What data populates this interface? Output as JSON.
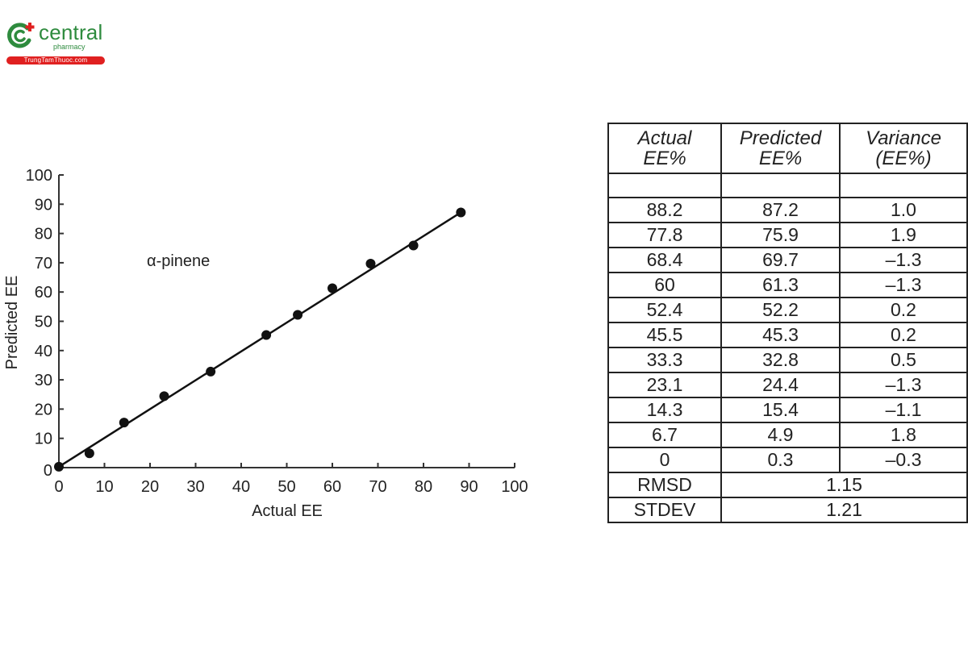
{
  "logo": {
    "brand": "central",
    "sub": "pharmacy",
    "site": "TrungTamThuoc.com",
    "colors": {
      "green": "#2e8b3e",
      "red": "#e02020"
    }
  },
  "chart_data": {
    "type": "scatter",
    "title": "",
    "annotation": "α-pinene",
    "xlabel": "Actual EE",
    "ylabel": "Predicted EE",
    "xlim": [
      0,
      100
    ],
    "ylim": [
      0,
      100
    ],
    "xticks": [
      0,
      10,
      20,
      30,
      40,
      50,
      60,
      70,
      80,
      90,
      100
    ],
    "yticks": [
      0,
      10,
      20,
      30,
      40,
      50,
      60,
      70,
      80,
      90,
      100
    ],
    "grid": false,
    "legend": null,
    "series": [
      {
        "name": "α-pinene",
        "x": [
          0,
          6.7,
          14.3,
          23.1,
          33.3,
          45.5,
          52.4,
          60,
          68.4,
          77.8,
          88.2
        ],
        "y": [
          0.3,
          4.9,
          15.4,
          24.4,
          32.8,
          45.3,
          52.2,
          61.3,
          69.7,
          75.9,
          87.2
        ]
      }
    ],
    "fit_line": {
      "x": [
        0,
        88.2
      ],
      "y": [
        0.3,
        87.2
      ]
    }
  },
  "table": {
    "headers": [
      {
        "line1": "Actual",
        "line2": "EE%"
      },
      {
        "line1": "Predicted",
        "line2": "EE%"
      },
      {
        "line1": "Variance",
        "line2": "(EE%)"
      }
    ],
    "rows": [
      [
        "88.2",
        "87.2",
        "1.0"
      ],
      [
        "77.8",
        "75.9",
        "1.9"
      ],
      [
        "68.4",
        "69.7",
        "–1.3"
      ],
      [
        "60",
        "61.3",
        "–1.3"
      ],
      [
        "52.4",
        "52.2",
        "0.2"
      ],
      [
        "45.5",
        "45.3",
        "0.2"
      ],
      [
        "33.3",
        "32.8",
        "0.5"
      ],
      [
        "23.1",
        "24.4",
        "–1.3"
      ],
      [
        "14.3",
        "15.4",
        "–1.1"
      ],
      [
        "6.7",
        "4.9",
        "1.8"
      ],
      [
        "0",
        "0.3",
        "–0.3"
      ]
    ],
    "summary": [
      {
        "label": "RMSD",
        "value": "1.15"
      },
      {
        "label": "STDEV",
        "value": "1.21"
      }
    ]
  }
}
